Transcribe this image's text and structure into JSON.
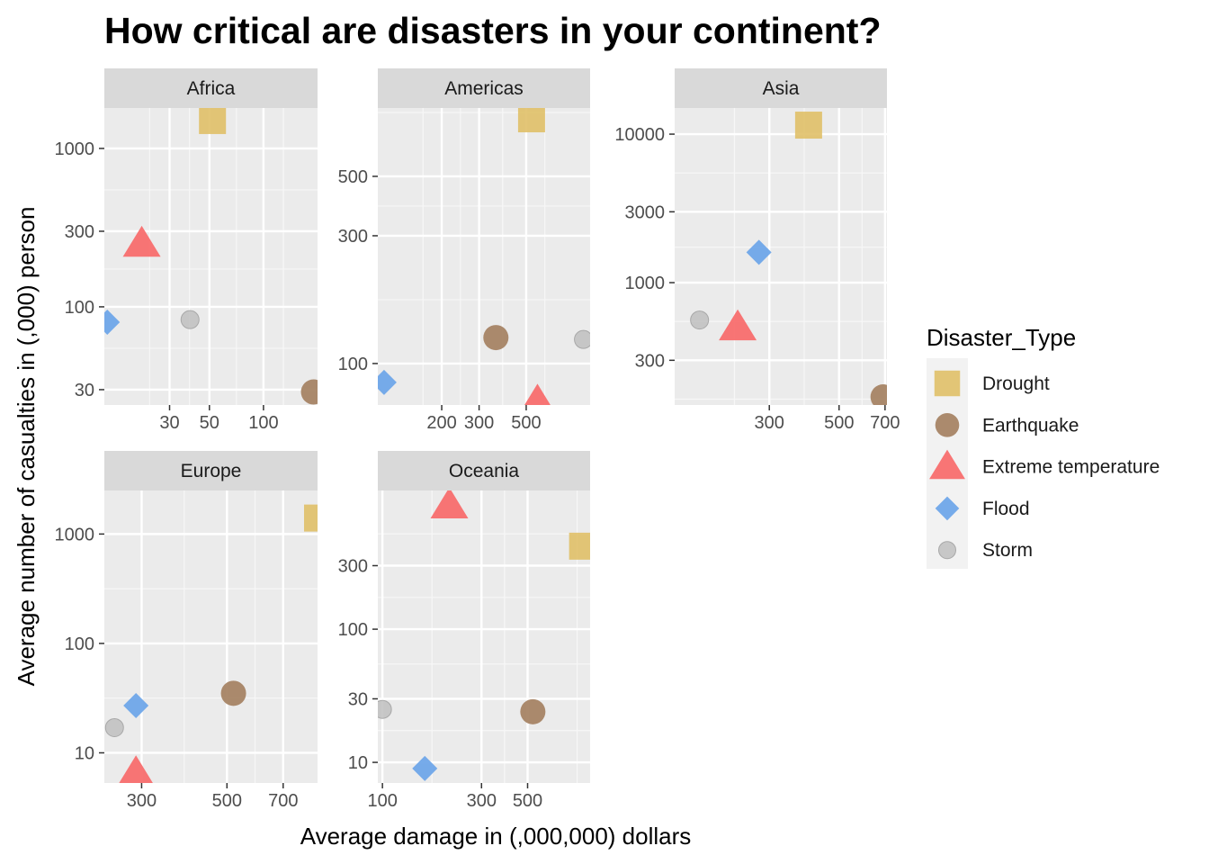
{
  "chart_data": {
    "type": "scatter",
    "title": "How critical are disasters in your continent?",
    "xlabel": "Average damage in (,000,000) dollars",
    "ylabel": "Average number of casualties in (,000) person",
    "x_scale": "log10",
    "y_scale": "log10",
    "grid": true,
    "legend": {
      "title": "Disaster_Type",
      "position": "right",
      "entries": [
        {
          "name": "Drought",
          "color": "#E0C068",
          "shape": "square"
        },
        {
          "name": "Earthquake",
          "color": "#A68465",
          "shape": "circle"
        },
        {
          "name": "Extreme temperature",
          "color": "#F86E6E",
          "shape": "triangle"
        },
        {
          "name": "Flood",
          "color": "#6FA7E9",
          "shape": "diamond"
        },
        {
          "name": "Storm",
          "color": "#BFBFBF",
          "shape": "circle-small"
        }
      ]
    },
    "facets": [
      {
        "name": "Africa",
        "xlim": [
          13,
          200
        ],
        "ylim": [
          24,
          1800
        ],
        "x_ticks": [
          30,
          50,
          100
        ],
        "x_tick_labels": [
          "30",
          "50",
          "100"
        ],
        "y_ticks": [
          30,
          100,
          300,
          1000
        ],
        "y_tick_labels": [
          "30",
          "100",
          "300",
          "1000"
        ],
        "points": [
          {
            "type": "Drought",
            "x": 52,
            "y": 1500
          },
          {
            "type": "Earthquake",
            "x": 190,
            "y": 29
          },
          {
            "type": "Extreme temperature",
            "x": 21,
            "y": 250
          },
          {
            "type": "Flood",
            "x": 13.5,
            "y": 80
          },
          {
            "type": "Storm",
            "x": 39,
            "y": 83
          }
        ]
      },
      {
        "name": "Americas",
        "xlim": [
          100,
          1000
        ],
        "ylim": [
          70,
          900
        ],
        "x_ticks": [
          200,
          300,
          500
        ],
        "x_tick_labels": [
          "200",
          "300",
          "500"
        ],
        "y_ticks": [
          100,
          300,
          500
        ],
        "y_tick_labels": [
          "100",
          "300",
          "500"
        ],
        "points": [
          {
            "type": "Drought",
            "x": 530,
            "y": 820
          },
          {
            "type": "Earthquake",
            "x": 360,
            "y": 125
          },
          {
            "type": "Extreme temperature",
            "x": 565,
            "y": 72
          },
          {
            "type": "Flood",
            "x": 107,
            "y": 85
          },
          {
            "type": "Storm",
            "x": 930,
            "y": 123
          }
        ]
      },
      {
        "name": "Asia",
        "xlim": [
          150,
          710
        ],
        "ylim": [
          150,
          15000
        ],
        "x_ticks": [
          300,
          500,
          700
        ],
        "x_tick_labels": [
          "300",
          "500",
          "700"
        ],
        "y_ticks": [
          300,
          1000,
          3000,
          10000
        ],
        "y_tick_labels": [
          "300",
          "1000",
          "3000",
          "10000"
        ],
        "points": [
          {
            "type": "Drought",
            "x": 400,
            "y": 11500
          },
          {
            "type": "Earthquake",
            "x": 690,
            "y": 170
          },
          {
            "type": "Extreme temperature",
            "x": 238,
            "y": 500
          },
          {
            "type": "Flood",
            "x": 278,
            "y": 1600
          },
          {
            "type": "Storm",
            "x": 180,
            "y": 560
          }
        ]
      },
      {
        "name": "Europe",
        "xlim": [
          240,
          860
        ],
        "ylim": [
          5.3,
          2500
        ],
        "x_ticks": [
          300,
          500,
          700
        ],
        "x_tick_labels": [
          "300",
          "500",
          "700"
        ],
        "y_ticks": [
          10,
          100,
          1000
        ],
        "y_tick_labels": [
          "10",
          "100",
          "1000"
        ],
        "points": [
          {
            "type": "Drought",
            "x": 860,
            "y": 1400
          },
          {
            "type": "Earthquake",
            "x": 520,
            "y": 35
          },
          {
            "type": "Extreme temperature",
            "x": 290,
            "y": 6.5
          },
          {
            "type": "Flood",
            "x": 290,
            "y": 27
          },
          {
            "type": "Storm",
            "x": 255,
            "y": 17
          }
        ]
      },
      {
        "name": "Oceania",
        "xlim": [
          95,
          1000
        ],
        "ylim": [
          7,
          1100
        ],
        "x_ticks": [
          100,
          300,
          500
        ],
        "x_tick_labels": [
          "100",
          "300",
          "500"
        ],
        "y_ticks": [
          10,
          30,
          100,
          300
        ],
        "y_tick_labels": [
          "10",
          "30",
          "100",
          "300"
        ],
        "points": [
          {
            "type": "Drought",
            "x": 920,
            "y": 420
          },
          {
            "type": "Earthquake",
            "x": 530,
            "y": 24
          },
          {
            "type": "Extreme temperature",
            "x": 210,
            "y": 850
          },
          {
            "type": "Flood",
            "x": 160,
            "y": 9
          },
          {
            "type": "Storm",
            "x": 100,
            "y": 25
          }
        ]
      }
    ]
  }
}
